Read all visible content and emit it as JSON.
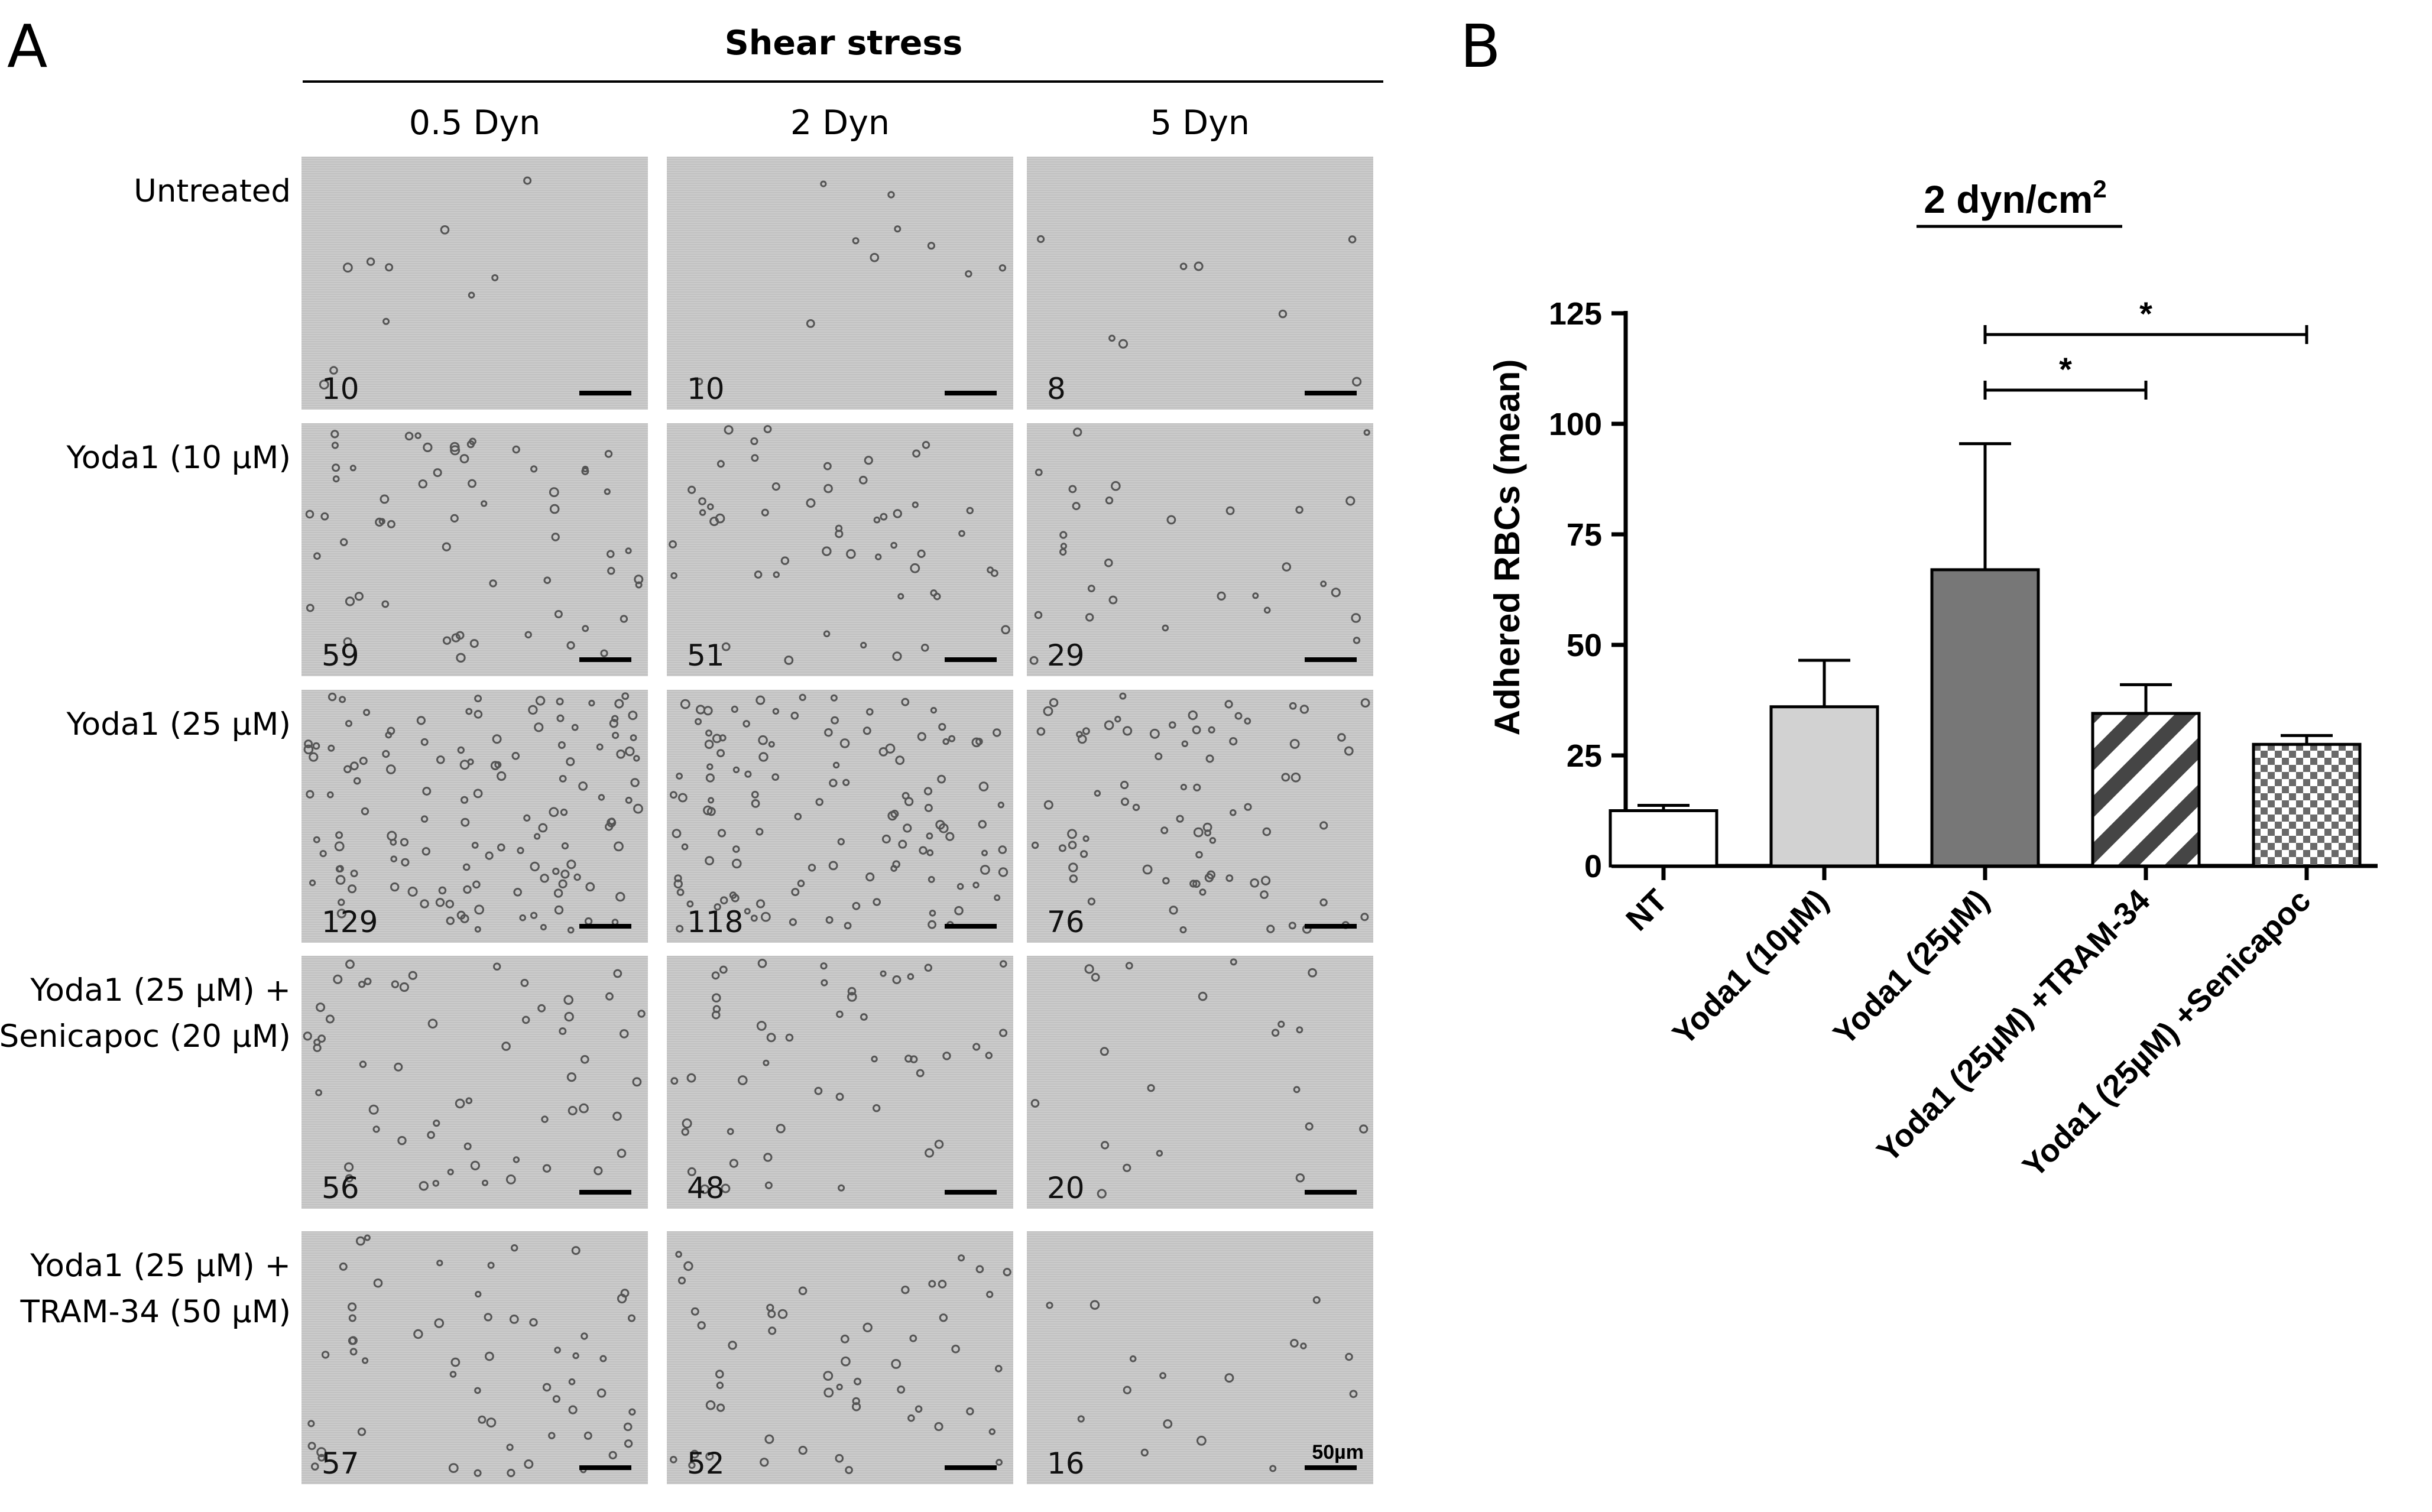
{
  "panel_a": {
    "letter": "A",
    "header": "Shear stress",
    "columns": [
      "0.5 Dyn",
      "2 Dyn",
      "5 Dyn"
    ],
    "rows": [
      {
        "label_lines": [
          "Untreated"
        ],
        "counts": [
          "10",
          "10",
          "8"
        ]
      },
      {
        "label_lines": [
          "Yoda1 (10 µM)"
        ],
        "counts": [
          "59",
          "51",
          "29"
        ]
      },
      {
        "label_lines": [
          "Yoda1 (25 µM)"
        ],
        "counts": [
          "129",
          "118",
          "76"
        ]
      },
      {
        "label_lines": [
          "Yoda1 (25 µM) +",
          "Senicapoc (20 µM)"
        ],
        "counts": [
          "56",
          "48",
          "20"
        ]
      },
      {
        "label_lines": [
          "Yoda1 (25 µM) +",
          "TRAM-34 (50 µM)"
        ],
        "counts": [
          "57",
          "52",
          "16"
        ]
      }
    ],
    "scale_bar_label": "50µm"
  },
  "chart_data": {
    "type": "bar",
    "panel_letter": "B",
    "title": "2 dyn/cm",
    "title_superscript": "2",
    "ylabel": "Adhered RBCs (mean)",
    "xlabel": "",
    "ylim": [
      0,
      125
    ],
    "yticks": [
      0,
      25,
      50,
      75,
      100,
      125
    ],
    "categories": [
      "NT",
      "Yoda1 (10µM)",
      "Yoda1 (25µM)",
      "Yoda1 (25µM) +TRAM-34",
      "Yoda1 (25µM) +Senicapoc"
    ],
    "values": [
      12.5,
      36,
      67,
      34.5,
      27.5
    ],
    "errors": [
      1.2,
      10.5,
      28.5,
      6.5,
      2
    ],
    "bar_styles": [
      "white",
      "light-gray",
      "dark-gray",
      "diagonal-stripes",
      "checkerboard"
    ],
    "significance": [
      {
        "from": "Yoda1 (25µM)",
        "to": "Yoda1 (25µM) +TRAM-34",
        "label": "*"
      },
      {
        "from": "Yoda1 (25µM)",
        "to": "Yoda1 (25µM) +Senicapoc",
        "label": "*"
      }
    ],
    "grid": false
  }
}
